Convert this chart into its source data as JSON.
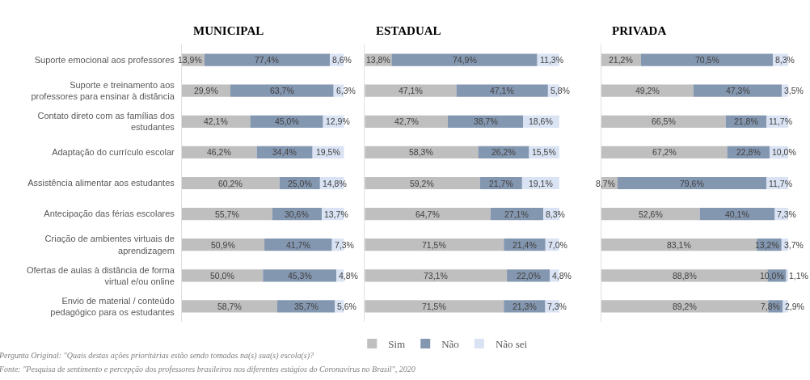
{
  "chart_data": [
    {
      "type": "bar",
      "orientation": "horizontal",
      "stacked": true,
      "title": "MUNICIPAL",
      "tick_labels": "y",
      "legend": "bottom",
      "categories": [
        "Suporte emocional aos professores",
        "Suporte e treinamento aos\nprofessores para ensinar à distância",
        "Contato direto com as famílias dos\nestudantes",
        "Adaptação do currículo escolar",
        "Assistência alimentar aos estudantes",
        "Antecipação das férias escolares",
        "Criação de ambientes virtuais de\naprendizagem",
        "Ofertas de aulas à distância de forma\nvirtual e/ou online",
        "Envio de material / conteúdo\npedagógico para os estudantes"
      ],
      "series": [
        {
          "name": "Sim",
          "color": "#bfbfbf",
          "values": [
            13.9,
            29.9,
            42.1,
            46.2,
            60.2,
            55.7,
            50.9,
            50.0,
            58.7
          ],
          "value_labels": [
            "13,9%",
            "29,9%",
            "42,1%",
            "46,2%",
            "60,2%",
            "55,7%",
            "50,9%",
            "50,0%",
            "58,7%"
          ]
        },
        {
          "name": "Não",
          "color": "#8497b0",
          "values": [
            77.4,
            63.7,
            45.0,
            34.4,
            25.0,
            30.6,
            41.7,
            45.3,
            35.7
          ],
          "value_labels": [
            "77,4%",
            "63,7%",
            "45,0%",
            "34,4%",
            "25,0%",
            "30,6%",
            "41,7%",
            "45,3%",
            "35,7%"
          ]
        },
        {
          "name": "Não sei",
          "color": "#dae3f3",
          "values": [
            8.6,
            6.3,
            12.9,
            19.5,
            14.8,
            13.7,
            7.3,
            4.8,
            5.6
          ],
          "value_labels": [
            "8,6%",
            "6,3%",
            "12,9%",
            "19,5%",
            "14,8%",
            "13,7%",
            "7,3%",
            "4,8%",
            "5,6%"
          ]
        }
      ],
      "annotations": [
        "Pergunta Original: \"Quais destas ações prioritárias estão sendo tomadas na(s) sua(s) escola(s)?",
        "Fonte: \"Pesquisa de sentimento e percepção dos professores brasileiros nos diferentes estágios do Coronavírus no Brasil\", 2020"
      ]
    },
    {
      "type": "bar",
      "orientation": "horizontal",
      "stacked": true,
      "title": "ESTADUAL",
      "tick_labels": false,
      "categories": [
        "Suporte emocional aos professores",
        "Suporte e treinamento aos\nprofessores para ensinar à distância",
        "Contato direto com as famílias dos\nestudantes",
        "Adaptação do currículo escolar",
        "Assistência alimentar aos estudantes",
        "Antecipação das férias escolares",
        "Criação de ambientes virtuais de\naprendizagem",
        "Ofertas de aulas à distância de forma\nvirtual e/ou online",
        "Envio de material / conteúdo\npedagógico para os estudantes"
      ],
      "series": [
        {
          "name": "Sim",
          "color": "#bfbfbf",
          "values": [
            13.8,
            47.1,
            42.7,
            58.3,
            59.2,
            64.7,
            71.5,
            73.1,
            71.5
          ],
          "value_labels": [
            "13,8%",
            "47,1%",
            "42,7%",
            "58,3%",
            "59,2%",
            "64,7%",
            "71,5%",
            "73,1%",
            "71,5%"
          ]
        },
        {
          "name": "Não",
          "color": "#8497b0",
          "values": [
            74.9,
            47.1,
            38.7,
            26.2,
            21.7,
            27.1,
            21.4,
            22.0,
            21.3
          ],
          "value_labels": [
            "74,9%",
            "47,1%",
            "38,7%",
            "26,2%",
            "21,7%",
            "27,1%",
            "21,4%",
            "22,0%",
            "21,3%"
          ]
        },
        {
          "name": "Não sei",
          "color": "#dae3f3",
          "values": [
            11.3,
            5.8,
            18.6,
            15.5,
            19.1,
            8.3,
            7.0,
            4.8,
            7.3
          ],
          "value_labels": [
            "11,3%",
            "5,8%",
            "18,6%",
            "15,5%",
            "19,1%",
            "8,3%",
            "7,0%",
            "4,8%",
            "7,3%"
          ]
        }
      ]
    },
    {
      "type": "bar",
      "orientation": "horizontal",
      "stacked": true,
      "title": "PRIVADA",
      "tick_labels": false,
      "categories": [
        "Suporte emocional aos professores",
        "Suporte e treinamento aos\nprofessores para ensinar à distância",
        "Contato direto com as famílias dos\nestudantes",
        "Adaptação do currículo escolar",
        "Assistência alimentar aos estudantes",
        "Antecipação das férias escolares",
        "Criação de ambientes virtuais de\naprendizagem",
        "Ofertas de aulas à distância de forma\nvirtual e/ou online",
        "Envio de material / conteúdo\npedagógico para os estudantes"
      ],
      "series": [
        {
          "name": "Sim",
          "color": "#bfbfbf",
          "values": [
            21.2,
            49.2,
            66.5,
            67.2,
            8.7,
            52.6,
            83.1,
            88.8,
            89.2
          ],
          "value_labels": [
            "21,2%",
            "49,2%",
            "66,5%",
            "67,2%",
            "8,7%",
            "52,6%",
            "83,1%",
            "88,8%",
            "89,2%"
          ]
        },
        {
          "name": "Não",
          "color": "#8497b0",
          "values": [
            70.5,
            47.3,
            21.8,
            22.8,
            79.6,
            40.1,
            13.2,
            10.0,
            7.8
          ],
          "value_labels": [
            "70,5%",
            "47,3%",
            "21,8%",
            "22,8%",
            "79,6%",
            "40,1%",
            "13,2%",
            "10,0%",
            "7,8%"
          ]
        },
        {
          "name": "Não sei",
          "color": "#dae3f3",
          "values": [
            8.3,
            3.5,
            11.7,
            10.0,
            11.7,
            7.3,
            3.7,
            1.1,
            2.9
          ],
          "value_labels": [
            "8,3%",
            "3,5%",
            "11,7%",
            "10,0%",
            "11,7%",
            "7,3%",
            "3,7%",
            "1,1%",
            "2,9%"
          ]
        }
      ]
    }
  ]
}
